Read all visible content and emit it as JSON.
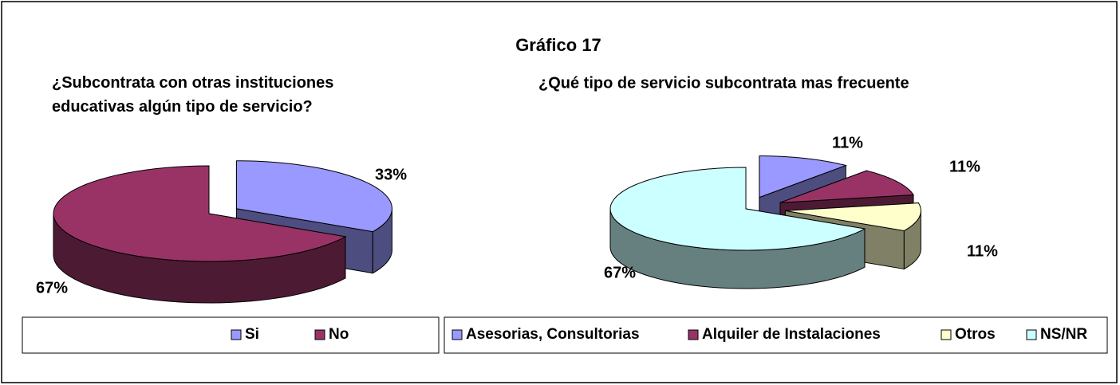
{
  "title": "Gráfico 17",
  "chart_data": [
    {
      "type": "pie",
      "title": "¿Subcontrata con otras instituciones educativas algún tipo de servicio?",
      "categories": [
        "Si",
        "No"
      ],
      "values": [
        33,
        67
      ],
      "value_labels": [
        "33%",
        "67%"
      ],
      "colors": [
        "#9999ff",
        "#993366"
      ]
    },
    {
      "type": "pie",
      "title": "¿Qué tipo de servicio subcontrata mas frecuente",
      "categories": [
        "Asesorias, Consultorias",
        "Alquiler de Instalaciones",
        "Otros",
        "NS/NR"
      ],
      "values": [
        11,
        11,
        11,
        67
      ],
      "value_labels": [
        "11%",
        "11%",
        "11%",
        "67%"
      ],
      "colors": [
        "#9999ff",
        "#993366",
        "#ffffcc",
        "#ccffff"
      ]
    }
  ]
}
